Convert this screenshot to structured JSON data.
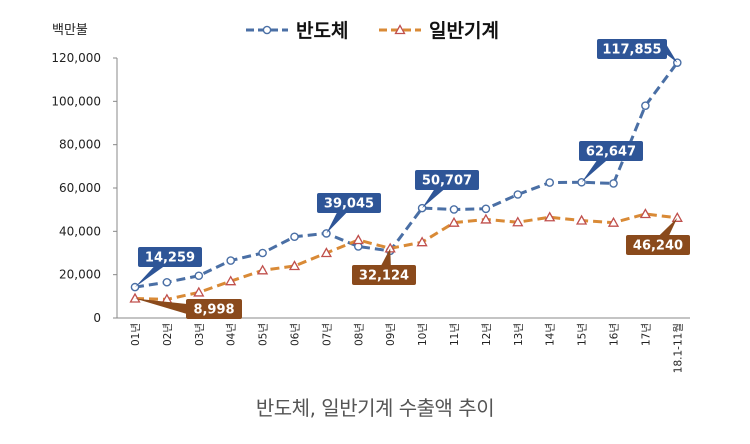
{
  "chart_data": {
    "type": "line",
    "ylabel": "백만불",
    "ylim": [
      0,
      120000
    ],
    "yticks": [
      "0",
      "20,000",
      "40,000",
      "60,000",
      "80,000",
      "100,000",
      "120,000"
    ],
    "ytick_values": [
      0,
      20000,
      40000,
      60000,
      80000,
      100000,
      120000
    ],
    "categories": [
      "01년",
      "02년",
      "03년",
      "04년",
      "05년",
      "06년",
      "07년",
      "08년",
      "09년",
      "10년",
      "11년",
      "12년",
      "13년",
      "14년",
      "15년",
      "16년",
      "17년",
      "18.1-11월"
    ],
    "legend_position": "top",
    "grid": false,
    "series": [
      {
        "name": "반도체",
        "color": "#4A6FA5",
        "label_color": "#2E5597",
        "marker": "circle",
        "values": [
          14259,
          16500,
          19500,
          26500,
          30000,
          37500,
          39045,
          33000,
          31000,
          50707,
          50100,
          50400,
          57000,
          62500,
          62647,
          62100,
          98000,
          117855
        ]
      },
      {
        "name": "일반기계",
        "color": "#D98A36",
        "label_color": "#8A4A1C",
        "marker": "triangle",
        "values": [
          8998,
          8600,
          11800,
          17000,
          22000,
          24000,
          30000,
          36000,
          32124,
          35000,
          44000,
          45500,
          44200,
          46500,
          45000,
          44000,
          48000,
          46240
        ]
      }
    ],
    "annotations": [
      {
        "series": 0,
        "index": 0,
        "text": "14,259"
      },
      {
        "series": 0,
        "index": 6,
        "text": "39,045"
      },
      {
        "series": 0,
        "index": 9,
        "text": "50,707"
      },
      {
        "series": 0,
        "index": 14,
        "text": "62,647"
      },
      {
        "series": 0,
        "index": 17,
        "text": "117,855"
      },
      {
        "series": 1,
        "index": 0,
        "text": "8,998"
      },
      {
        "series": 1,
        "index": 8,
        "text": "32,124"
      },
      {
        "series": 1,
        "index": 17,
        "text": "46,240"
      }
    ]
  },
  "caption": "반도체, 일반기계 수출액 추이"
}
